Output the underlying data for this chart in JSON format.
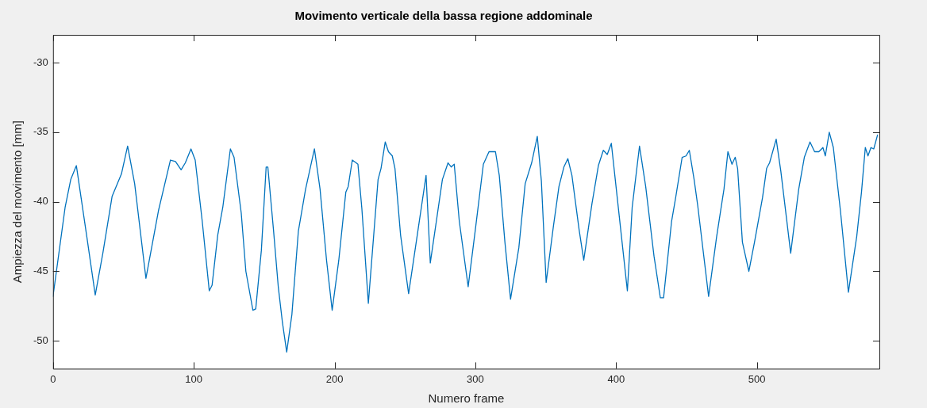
{
  "chart_data": {
    "type": "line",
    "title": "Movimento verticale della bassa regione addominale",
    "xlabel": "Numero frame",
    "ylabel": "Ampiezza del movimento [mm]",
    "xlim": [
      0,
      587
    ],
    "xticks": [
      0,
      100,
      200,
      300,
      400,
      500
    ],
    "ylim": [
      -52,
      -28
    ],
    "yticks": [
      -50,
      -45,
      -40,
      -35,
      -30
    ],
    "grid": false,
    "legend": false,
    "marker": "none",
    "line_style": "solid",
    "series": [
      {
        "color": "#0072bd",
        "x": [
          0,
          8.6,
          12.6,
          16.6,
          24,
          30,
          35.4,
          42,
          48.6,
          53,
          58,
          66,
          75,
          83.4,
          87,
          91,
          94,
          98,
          101,
          106,
          111,
          113,
          117,
          120.6,
          126,
          128.6,
          133.7,
          137,
          142,
          144,
          148,
          151.4,
          152.6,
          156.6,
          160,
          163,
          166,
          169.7,
          174.3,
          179.4,
          185.7,
          189.7,
          194.3,
          198.3,
          203,
          208,
          209.7,
          212.6,
          216.6,
          219.4,
          224,
          230.9,
          233,
          236,
          238.3,
          241,
          242.9,
          246.9,
          252.6,
          258.3,
          265,
          268,
          276.6,
          280.6,
          282.9,
          285,
          288.6,
          294.9,
          300,
          305.7,
          309.7,
          314.3,
          317,
          321,
          325,
          330.9,
          335.4,
          340,
          344,
          346.9,
          350.3,
          355.4,
          359.4,
          362.9,
          365.7,
          368.6,
          373.7,
          377,
          382.9,
          387.4,
          390.9,
          393.7,
          396.6,
          401,
          408,
          411.4,
          416.6,
          421,
          426.9,
          431.4,
          433.7,
          439.4,
          442.3,
          446.9,
          449.7,
          452,
          455.4,
          458,
          465.7,
          471.4,
          476.6,
          479.4,
          482.3,
          484.6,
          486.3,
          489.7,
          494.3,
          498.3,
          504,
          506.9,
          509,
          513.7,
          517,
          524,
          529.7,
          533.7,
          537.7,
          541,
          544,
          546.9,
          548.6,
          551.4,
          554.3,
          559.4,
          565,
          570.9,
          574.3,
          577,
          578.9,
          581,
          583,
          585.7
        ],
        "values": [
          -46.8,
          -40.4,
          -38.4,
          -37.4,
          -42.5,
          -46.7,
          -43.7,
          -39.6,
          -38,
          -36,
          -38.7,
          -45.5,
          -40.6,
          -37,
          -37.1,
          -37.7,
          -37.2,
          -36.2,
          -37,
          -41.4,
          -46.4,
          -46,
          -42.4,
          -40.4,
          -36.2,
          -36.8,
          -40.8,
          -45,
          -47.8,
          -47.7,
          -43.5,
          -37.5,
          -37.5,
          -42,
          -46.1,
          -48.7,
          -50.8,
          -48.1,
          -42.1,
          -39.1,
          -36.2,
          -39.1,
          -44.2,
          -47.8,
          -44.2,
          -39.3,
          -38.9,
          -37,
          -37.3,
          -40.5,
          -47.3,
          -38.4,
          -37.6,
          -35.7,
          -36.4,
          -36.7,
          -37.6,
          -42.4,
          -46.6,
          -42.7,
          -38.1,
          -44.4,
          -38.4,
          -37.2,
          -37.5,
          -37.3,
          -41.4,
          -46.1,
          -42,
          -37.3,
          -36.4,
          -36.4,
          -38.1,
          -42.9,
          -47,
          -43.3,
          -38.7,
          -37.2,
          -35.3,
          -38.5,
          -45.8,
          -41.8,
          -38.9,
          -37.5,
          -36.9,
          -38.1,
          -42,
          -44.2,
          -40.1,
          -37.4,
          -36.3,
          -36.6,
          -35.8,
          -39.9,
          -46.4,
          -40.4,
          -36,
          -38.9,
          -43.9,
          -46.9,
          -46.9,
          -41.4,
          -39.7,
          -36.8,
          -36.7,
          -36.3,
          -38.4,
          -40.3,
          -46.8,
          -42.5,
          -39.1,
          -36.4,
          -37.3,
          -36.8,
          -37.6,
          -42.9,
          -45,
          -42.9,
          -39.7,
          -37.6,
          -37.2,
          -35.5,
          -37.8,
          -43.7,
          -39.1,
          -36.8,
          -35.7,
          -36.4,
          -36.4,
          -36.1,
          -36.7,
          -35,
          -36.1,
          -40.7,
          -46.5,
          -42.5,
          -39.3,
          -36.1,
          -36.7,
          -36.1,
          -36.2,
          -35.2
        ]
      }
    ]
  }
}
